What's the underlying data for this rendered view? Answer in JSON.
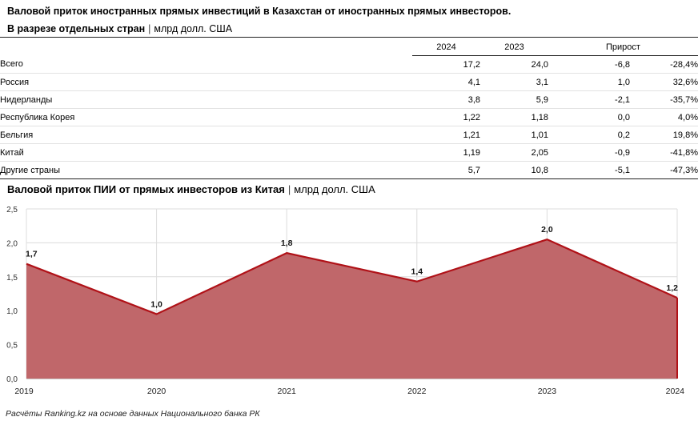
{
  "header": {
    "title": "Валовой приток иностранных прямых инвестиций в Казахстан от иностранных прямых инвесторов.",
    "subtitle_bold": "В разрезе отдельных стран",
    "subtitle_sep": "|",
    "subtitle_unit": "млрд долл. США"
  },
  "table": {
    "columns": [
      "2024",
      "2023",
      "Прирост"
    ],
    "rows": [
      {
        "name": "Всего",
        "v2024": "17,2",
        "v2023": "24,0",
        "abs": "-6,8",
        "pct": "-28,4%"
      },
      {
        "name": "Россия",
        "v2024": "4,1",
        "v2023": "3,1",
        "abs": "1,0",
        "pct": "32,6%"
      },
      {
        "name": "Нидерланды",
        "v2024": "3,8",
        "v2023": "5,9",
        "abs": "-2,1",
        "pct": "-35,7%"
      },
      {
        "name": "Республика Корея",
        "v2024": "1,22",
        "v2023": "1,18",
        "abs": "0,0",
        "pct": "4,0%"
      },
      {
        "name": "Бельгия",
        "v2024": "1,21",
        "v2023": "1,01",
        "abs": "0,2",
        "pct": "19,8%"
      },
      {
        "name": "Китай",
        "v2024": "1,19",
        "v2023": "2,05",
        "abs": "-0,9",
        "pct": "-41,8%"
      },
      {
        "name": "Другие страны",
        "v2024": "5,7",
        "v2023": "10,8",
        "abs": "-5,1",
        "pct": "-47,3%"
      }
    ]
  },
  "chart_title": {
    "bold": "Валовой приток ПИИ от прямых инвесторов из Китая",
    "sep": "|",
    "unit": "млрд долл. США"
  },
  "chart_data": {
    "type": "area",
    "title": "Валовой приток ПИИ от прямых инвесторов из Китая | млрд долл. США",
    "x": [
      "2019",
      "2020",
      "2021",
      "2022",
      "2023",
      "2024"
    ],
    "values": [
      1.69,
      0.95,
      1.85,
      1.43,
      2.05,
      1.19
    ],
    "data_labels": [
      "1,7",
      "1,0",
      "1,8",
      "1,4",
      "2,0",
      "1,2"
    ],
    "yticks": [
      "0,0",
      "0,5",
      "1,0",
      "1,5",
      "2,0",
      "2,5"
    ],
    "ylim": [
      0,
      2.5
    ],
    "grid": true,
    "fill_color": "#c0676a",
    "line_color": "#b01218"
  },
  "source": "Расчёты Ranking.kz на основе данных Национального банка РК"
}
